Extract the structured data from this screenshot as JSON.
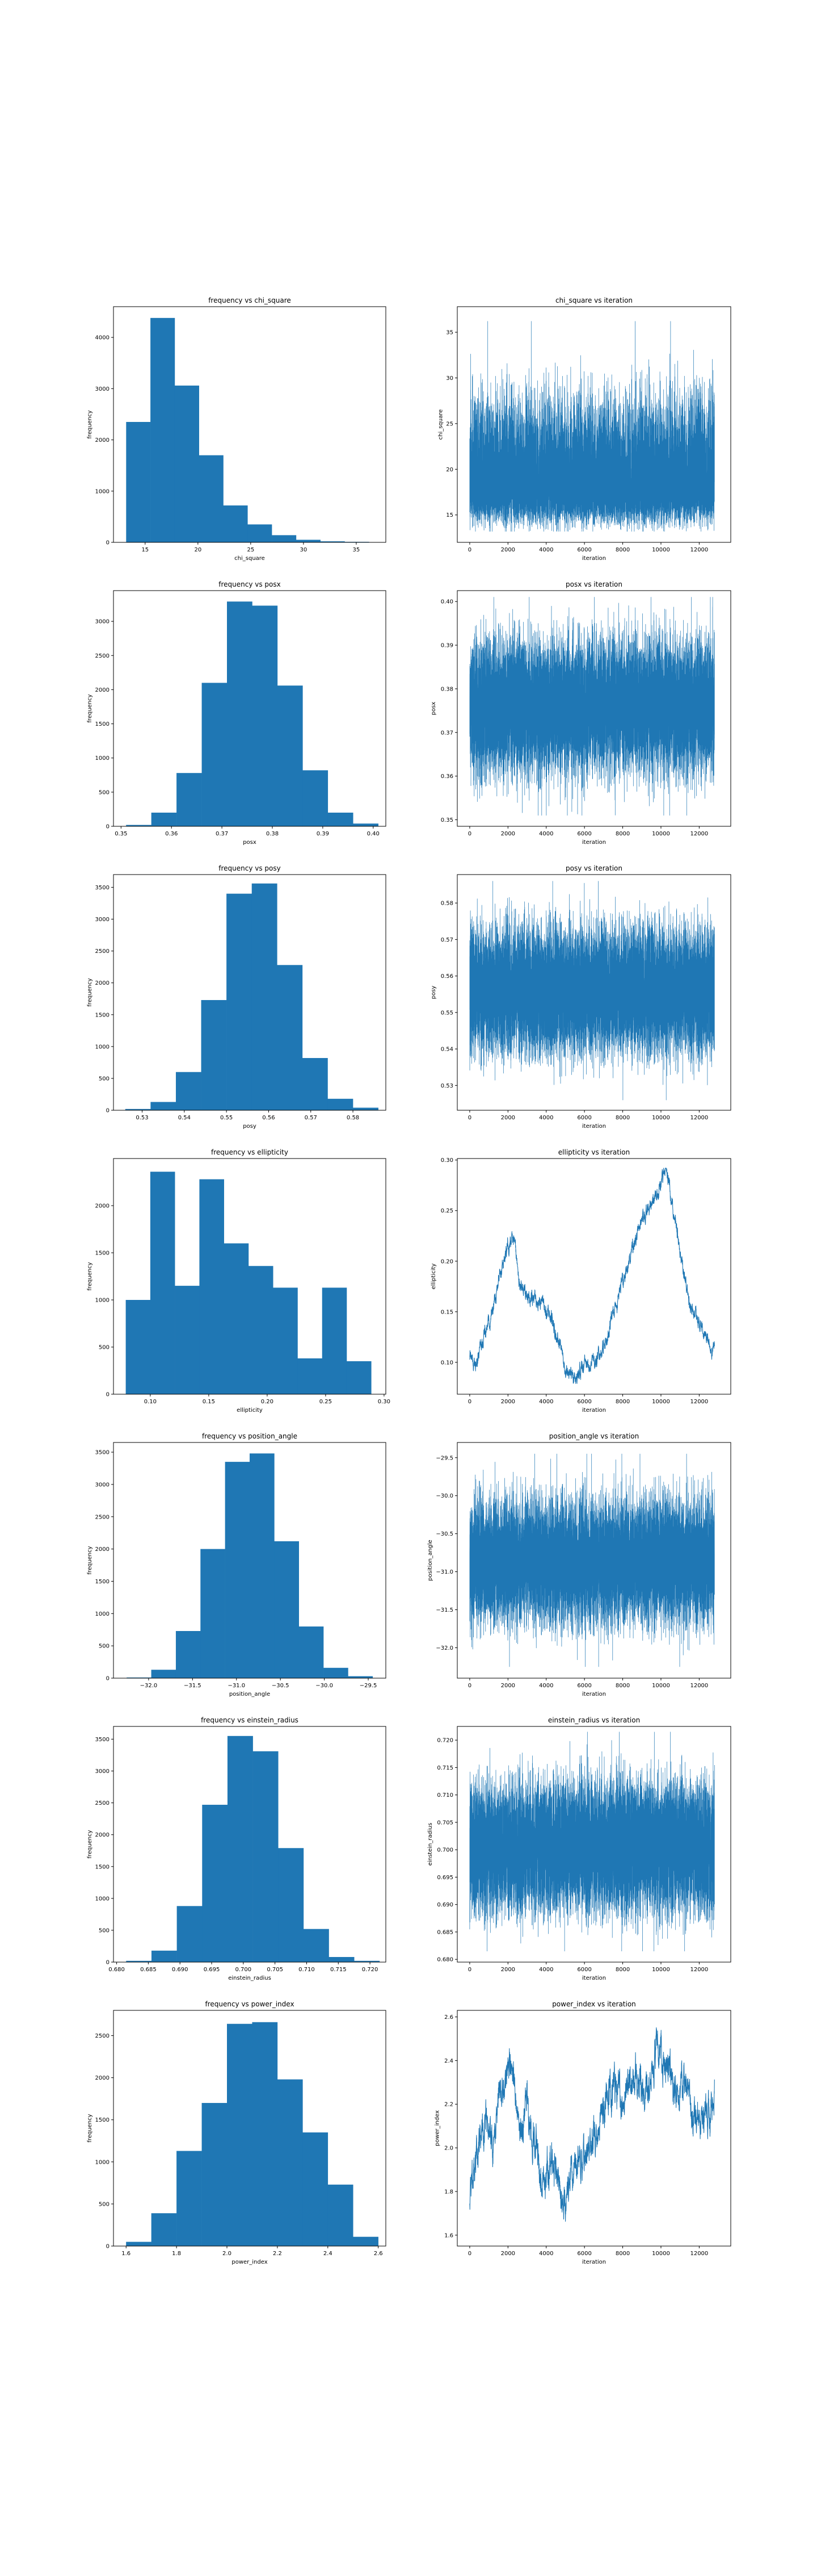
{
  "figure": {
    "background": "#ffffff",
    "bar_color": "#1f77b4",
    "line_color": "#1f77b4"
  },
  "chart_data": [
    {
      "type": "bar",
      "title": "frequency vs chi_square",
      "xlabel": "chi_square",
      "ylabel": "frequency",
      "xlim": [
        12.0,
        37.8
      ],
      "ylim": [
        0,
        4600
      ],
      "bin_edges": [
        13.2,
        15.5,
        17.8,
        20.1,
        22.4,
        24.7,
        27.0,
        29.3,
        31.6,
        33.9,
        36.2
      ],
      "values": [
        2350,
        4380,
        3060,
        1700,
        720,
        350,
        140,
        50,
        20,
        10
      ],
      "xticks": [
        15,
        20,
        25,
        30,
        35
      ],
      "xtick_labels": [
        "15",
        "20",
        "25",
        "30",
        "35"
      ],
      "yticks": [
        0,
        1000,
        2000,
        3000,
        4000
      ],
      "ytick_labels": [
        "0",
        "1000",
        "2000",
        "3000",
        "4000"
      ],
      "grid": false
    },
    {
      "type": "line",
      "title": "chi_square vs iteration",
      "xlabel": "iteration",
      "ylabel": "chi_square",
      "xlim": [
        -650,
        13650
      ],
      "ylim": [
        12.0,
        37.8
      ],
      "trace": {
        "n_points": 12800,
        "kind": "noise",
        "baseline": [
          17.6,
          17.6
        ],
        "lower_bound": 13.2,
        "upper_bound": 36.2,
        "spread": 3.0,
        "skew": 1.6
      },
      "xticks": [
        0,
        2000,
        4000,
        6000,
        8000,
        10000,
        12000
      ],
      "xtick_labels": [
        "0",
        "2000",
        "4000",
        "6000",
        "8000",
        "10000",
        "12000"
      ],
      "yticks": [
        15,
        20,
        25,
        30,
        35
      ],
      "ytick_labels": [
        "15",
        "20",
        "25",
        "30",
        "35"
      ],
      "grid": false
    },
    {
      "type": "bar",
      "title": "frequency vs posx",
      "xlabel": "posx",
      "ylabel": "frequency",
      "xlim": [
        0.3485,
        0.4025
      ],
      "ylim": [
        0,
        3450
      ],
      "bin_edges": [
        0.351,
        0.356,
        0.361,
        0.366,
        0.371,
        0.376,
        0.381,
        0.386,
        0.391,
        0.396,
        0.401
      ],
      "values": [
        20,
        200,
        780,
        2100,
        3290,
        3230,
        2060,
        820,
        200,
        40
      ],
      "xticks": [
        0.35,
        0.36,
        0.37,
        0.38,
        0.39,
        0.4
      ],
      "xtick_labels": [
        "0.35",
        "0.36",
        "0.37",
        "0.38",
        "0.39",
        "0.40"
      ],
      "yticks": [
        0,
        500,
        1000,
        1500,
        2000,
        2500,
        3000
      ],
      "ytick_labels": [
        "0",
        "500",
        "1000",
        "1500",
        "2000",
        "2500",
        "3000"
      ],
      "grid": false
    },
    {
      "type": "line",
      "title": "posx vs iteration",
      "xlabel": "iteration",
      "ylabel": "posx",
      "xlim": [
        -650,
        13650
      ],
      "ylim": [
        0.3485,
        0.4025
      ],
      "trace": {
        "n_points": 12800,
        "kind": "noise",
        "baseline": [
          0.376,
          0.376
        ],
        "lower_bound": 0.351,
        "upper_bound": 0.401,
        "spread": 0.0075,
        "skew": 0
      },
      "xticks": [
        0,
        2000,
        4000,
        6000,
        8000,
        10000,
        12000
      ],
      "xtick_labels": [
        "0",
        "2000",
        "4000",
        "6000",
        "8000",
        "10000",
        "12000"
      ],
      "yticks": [
        0.35,
        0.36,
        0.37,
        0.38,
        0.39,
        0.4
      ],
      "ytick_labels": [
        "0.35",
        "0.36",
        "0.37",
        "0.38",
        "0.39",
        "0.40"
      ],
      "grid": false
    },
    {
      "type": "bar",
      "title": "frequency vs posy",
      "xlabel": "posy",
      "ylabel": "frequency",
      "xlim": [
        0.5232,
        0.5878
      ],
      "ylim": [
        0,
        3700
      ],
      "bin_edges": [
        0.526,
        0.532,
        0.538,
        0.544,
        0.55,
        0.556,
        0.562,
        0.568,
        0.574,
        0.58,
        0.586
      ],
      "values": [
        20,
        130,
        600,
        1730,
        3400,
        3560,
        2280,
        820,
        180,
        40
      ],
      "xticks": [
        0.53,
        0.54,
        0.55,
        0.56,
        0.57,
        0.58
      ],
      "xtick_labels": [
        "0.53",
        "0.54",
        "0.55",
        "0.56",
        "0.57",
        "0.58"
      ],
      "yticks": [
        0,
        500,
        1000,
        1500,
        2000,
        2500,
        3000,
        3500
      ],
      "ytick_labels": [
        "0",
        "500",
        "1000",
        "1500",
        "2000",
        "2500",
        "3000",
        "3500"
      ],
      "grid": false
    },
    {
      "type": "line",
      "title": "posy vs iteration",
      "xlabel": "iteration",
      "ylabel": "posy",
      "xlim": [
        -650,
        13650
      ],
      "ylim": [
        0.5232,
        0.5878
      ],
      "trace": {
        "n_points": 12800,
        "kind": "noise",
        "baseline": [
          0.556,
          0.556
        ],
        "lower_bound": 0.526,
        "upper_bound": 0.586,
        "spread": 0.0085,
        "skew": 0
      },
      "xticks": [
        0,
        2000,
        4000,
        6000,
        8000,
        10000,
        12000
      ],
      "xtick_labels": [
        "0",
        "2000",
        "4000",
        "6000",
        "8000",
        "10000",
        "12000"
      ],
      "yticks": [
        0.53,
        0.54,
        0.55,
        0.56,
        0.57,
        0.58
      ],
      "ytick_labels": [
        "0.53",
        "0.54",
        "0.55",
        "0.56",
        "0.57",
        "0.58"
      ],
      "grid": false
    },
    {
      "type": "bar",
      "title": "frequency vs ellipticity",
      "xlabel": "ellipticity",
      "ylabel": "frequency",
      "xlim": [
        0.0685,
        0.3015
      ],
      "ylim": [
        0,
        2500
      ],
      "bin_edges": [
        0.079,
        0.1,
        0.121,
        0.142,
        0.163,
        0.184,
        0.205,
        0.226,
        0.247,
        0.268,
        0.289
      ],
      "values": [
        1000,
        2360,
        1150,
        2280,
        1600,
        1360,
        1130,
        380,
        1130,
        350
      ],
      "xticks": [
        0.1,
        0.15,
        0.2,
        0.25,
        0.3
      ],
      "xtick_labels": [
        "0.10",
        "0.15",
        "0.20",
        "0.25",
        "0.30"
      ],
      "yticks": [
        0,
        500,
        1000,
        1500,
        2000
      ],
      "ytick_labels": [
        "0",
        "500",
        "1000",
        "1500",
        "2000"
      ],
      "grid": false
    },
    {
      "type": "line",
      "title": "ellipticity vs iteration",
      "xlabel": "iteration",
      "ylabel": "ellipticity",
      "xlim": [
        -650,
        13650
      ],
      "ylim": [
        0.0685,
        0.3015
      ],
      "trace": {
        "n_points": 2600,
        "kind": "walk",
        "baseline": [
          0,
          0.105,
          300,
          0.098,
          700,
          0.125,
          1200,
          0.15,
          1600,
          0.188,
          2000,
          0.212,
          2300,
          0.222,
          2600,
          0.18,
          3000,
          0.165,
          3600,
          0.16,
          4200,
          0.145,
          4700,
          0.12,
          5000,
          0.09,
          5500,
          0.083,
          6000,
          0.098,
          6600,
          0.1,
          7100,
          0.12,
          7700,
          0.16,
          8300,
          0.2,
          9000,
          0.24,
          9600,
          0.26,
          10000,
          0.278,
          10300,
          0.29,
          10700,
          0.245,
          11100,
          0.2,
          11500,
          0.155,
          12000,
          0.14,
          12600,
          0.112
        ],
        "lower_bound": 0.079,
        "upper_bound": 0.292,
        "spread": 0.0045,
        "skew": 0
      },
      "xticks": [
        0,
        2000,
        4000,
        6000,
        8000,
        10000,
        12000
      ],
      "xtick_labels": [
        "0",
        "2000",
        "4000",
        "6000",
        "8000",
        "10000",
        "12000"
      ],
      "yticks": [
        0.1,
        0.15,
        0.2,
        0.25,
        0.3
      ],
      "ytick_labels": [
        "0.10",
        "0.15",
        "0.20",
        "0.25",
        "0.30"
      ],
      "grid": false
    },
    {
      "type": "bar",
      "title": "frequency vs position_angle",
      "xlabel": "position_angle",
      "ylabel": "frequency",
      "xlim": [
        -32.4,
        -29.3
      ],
      "ylim": [
        0,
        3650
      ],
      "bin_edges": [
        -32.25,
        -31.97,
        -31.69,
        -31.41,
        -31.13,
        -30.85,
        -30.57,
        -30.29,
        -30.01,
        -29.73,
        -29.45
      ],
      "values": [
        10,
        130,
        730,
        2000,
        3350,
        3480,
        2120,
        800,
        160,
        30
      ],
      "xticks": [
        -32.0,
        -31.5,
        -31.0,
        -30.5,
        -30.0,
        -29.5
      ],
      "xtick_labels": [
        "−32.0",
        "−31.5",
        "−31.0",
        "−30.5",
        "−30.0",
        "−29.5"
      ],
      "yticks": [
        0,
        500,
        1000,
        1500,
        2000,
        2500,
        3000,
        3500
      ],
      "ytick_labels": [
        "0",
        "500",
        "1000",
        "1500",
        "2000",
        "2500",
        "3000",
        "3500"
      ],
      "grid": false
    },
    {
      "type": "line",
      "title": "position_angle vs iteration",
      "xlabel": "iteration",
      "ylabel": "position_angle",
      "xlim": [
        -650,
        13650
      ],
      "ylim": [
        -32.4,
        -29.3
      ],
      "trace": {
        "n_points": 12800,
        "kind": "noise",
        "baseline": [
          -30.86,
          -30.86
        ],
        "lower_bound": -32.25,
        "upper_bound": -29.45,
        "spread": 0.4,
        "skew": 0
      },
      "xticks": [
        0,
        2000,
        4000,
        6000,
        8000,
        10000,
        12000
      ],
      "xtick_labels": [
        "0",
        "2000",
        "4000",
        "6000",
        "8000",
        "10000",
        "12000"
      ],
      "yticks": [
        -32.0,
        -31.5,
        -31.0,
        -30.5,
        -30.0,
        -29.5
      ],
      "ytick_labels": [
        "−32.0",
        "−31.5",
        "−31.0",
        "−30.5",
        "−30.0",
        "−29.5"
      ],
      "grid": false
    },
    {
      "type": "bar",
      "title": "frequency vs einstein_radius",
      "xlabel": "einstein_radius",
      "ylabel": "frequency",
      "xlim": [
        0.6795,
        0.7225
      ],
      "ylim": [
        0,
        3700
      ],
      "bin_edges": [
        0.6815,
        0.6855,
        0.6895,
        0.6935,
        0.6975,
        0.7015,
        0.7055,
        0.7095,
        0.7135,
        0.7175,
        0.7215
      ],
      "values": [
        20,
        180,
        880,
        2470,
        3550,
        3310,
        1790,
        520,
        80,
        20
      ],
      "xticks": [
        0.68,
        0.685,
        0.69,
        0.695,
        0.7,
        0.705,
        0.71,
        0.715,
        0.72
      ],
      "xtick_labels": [
        "0.680",
        "0.685",
        "0.690",
        "0.695",
        "0.700",
        "0.705",
        "0.710",
        "0.715",
        "0.720"
      ],
      "yticks": [
        0,
        500,
        1000,
        1500,
        2000,
        2500,
        3000,
        3500
      ],
      "ytick_labels": [
        "0",
        "500",
        "1000",
        "1500",
        "2000",
        "2500",
        "3000",
        "3500"
      ],
      "grid": false
    },
    {
      "type": "line",
      "title": "einstein_radius vs iteration",
      "xlabel": "iteration",
      "ylabel": "einstein_radius",
      "xlim": [
        -650,
        13650
      ],
      "ylim": [
        0.6795,
        0.7225
      ],
      "trace": {
        "n_points": 12800,
        "kind": "noise",
        "baseline": [
          0.7005,
          0.7005
        ],
        "lower_bound": 0.6815,
        "upper_bound": 0.7215,
        "spread": 0.0058,
        "skew": 0
      },
      "xticks": [
        0,
        2000,
        4000,
        6000,
        8000,
        10000,
        12000
      ],
      "xtick_labels": [
        "0",
        "2000",
        "4000",
        "6000",
        "8000",
        "10000",
        "12000"
      ],
      "yticks": [
        0.68,
        0.685,
        0.69,
        0.695,
        0.7,
        0.705,
        0.71,
        0.715,
        0.72
      ],
      "ytick_labels": [
        "0.680",
        "0.685",
        "0.690",
        "0.695",
        "0.700",
        "0.705",
        "0.710",
        "0.715",
        "0.720"
      ],
      "grid": false
    },
    {
      "type": "bar",
      "title": "frequency vs power_index",
      "xlabel": "power_index",
      "ylabel": "frequency",
      "xlim": [
        1.55,
        2.63
      ],
      "ylim": [
        0,
        2800
      ],
      "bin_edges": [
        1.6,
        1.7,
        1.8,
        1.9,
        2.0,
        2.1,
        2.2,
        2.3,
        2.4,
        2.5,
        2.6
      ],
      "values": [
        50,
        390,
        1130,
        1700,
        2640,
        2660,
        1980,
        1350,
        730,
        110
      ],
      "xticks": [
        1.6,
        1.8,
        2.0,
        2.2,
        2.4,
        2.6
      ],
      "xtick_labels": [
        "1.6",
        "1.8",
        "2.0",
        "2.2",
        "2.4",
        "2.6"
      ],
      "yticks": [
        0,
        500,
        1000,
        1500,
        2000,
        2500
      ],
      "ytick_labels": [
        "0",
        "500",
        "1000",
        "1500",
        "2000",
        "2500"
      ],
      "grid": false
    },
    {
      "type": "line",
      "title": "power_index vs iteration",
      "xlabel": "iteration",
      "ylabel": "power_index",
      "xlim": [
        -650,
        13650
      ],
      "ylim": [
        1.55,
        2.63
      ],
      "trace": {
        "n_points": 2600,
        "kind": "walk",
        "baseline": [
          0,
          1.8,
          300,
          1.95,
          800,
          2.15,
          1200,
          2.0,
          1700,
          2.3,
          2200,
          2.4,
          2600,
          2.05,
          3000,
          2.2,
          3400,
          2.0,
          3900,
          1.85,
          4400,
          1.95,
          4900,
          1.75,
          5400,
          1.9,
          5900,
          1.95,
          6500,
          2.05,
          7000,
          2.2,
          7500,
          2.3,
          8000,
          2.2,
          8600,
          2.35,
          9200,
          2.25,
          9800,
          2.45,
          10300,
          2.4,
          10800,
          2.25,
          11300,
          2.3,
          11800,
          2.1,
          12300,
          2.15,
          12800,
          2.2
        ],
        "lower_bound": 1.6,
        "upper_bound": 2.6,
        "spread": 0.05,
        "skew": 0
      },
      "xticks": [
        0,
        2000,
        4000,
        6000,
        8000,
        10000,
        12000
      ],
      "xtick_labels": [
        "0",
        "2000",
        "4000",
        "6000",
        "8000",
        "10000",
        "12000"
      ],
      "yticks": [
        1.6,
        1.8,
        2.0,
        2.2,
        2.4,
        2.6
      ],
      "ytick_labels": [
        "1.6",
        "1.8",
        "2.0",
        "2.2",
        "2.4",
        "2.6"
      ],
      "grid": false
    }
  ]
}
